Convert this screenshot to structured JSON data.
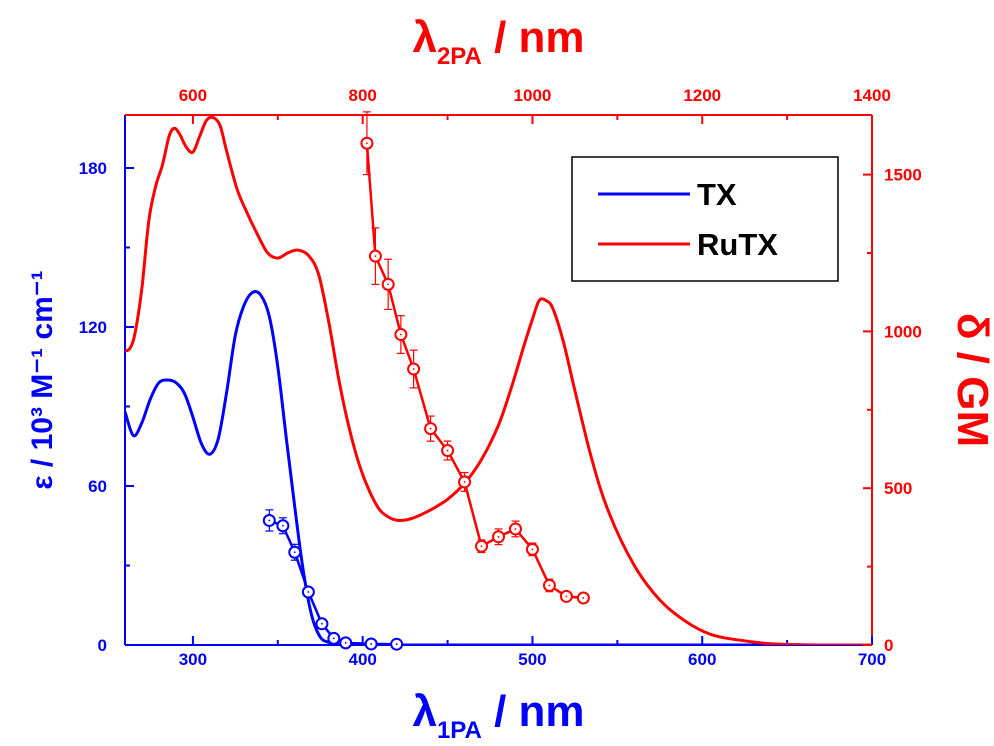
{
  "chart_data": {
    "type": "line",
    "axes": {
      "x_bottom": {
        "label_main": "λ",
        "label_sub": "1PA",
        "label_suffix": " / nm",
        "range": [
          260,
          700
        ],
        "ticks": [
          300,
          400,
          500,
          600,
          700
        ],
        "tick_labels": [
          "300",
          "400",
          "500",
          "600",
          "700"
        ],
        "color": "#0000ff"
      },
      "x_top": {
        "label_main": "λ",
        "label_sub": "2PA",
        "label_suffix": " / nm",
        "range": [
          520,
          1400
        ],
        "ticks": [
          600,
          800,
          1000,
          1200,
          1400
        ],
        "tick_labels": [
          "600",
          "800",
          "1000",
          "1200",
          "1400"
        ],
        "color": "#ff0000"
      },
      "y_left": {
        "label": "ε / 10³ M⁻¹ cm⁻¹",
        "range": [
          0,
          200
        ],
        "ticks": [
          0,
          60,
          120,
          180
        ],
        "tick_labels": [
          "0",
          "60",
          "120",
          "180"
        ],
        "color": "#0000ff"
      },
      "y_right": {
        "label": "δ / GM",
        "range": [
          0,
          1690
        ],
        "ticks": [
          0,
          500,
          1000,
          1500
        ],
        "tick_labels": [
          "0",
          "500",
          "1000",
          "1500"
        ],
        "color": "#ff0000"
      }
    },
    "legend": {
      "position": "top-right",
      "entries": [
        {
          "name": "TX",
          "color": "#0000ff"
        },
        {
          "name": "RuTX",
          "color": "#ff0000"
        }
      ]
    },
    "series": [
      {
        "name": "TX",
        "kind": "1PA absorption",
        "axis": "y_left",
        "color": "#0000ff",
        "x": [
          260,
          265,
          270,
          275,
          280,
          285,
          290,
          295,
          300,
          305,
          310,
          315,
          320,
          325,
          330,
          335,
          340,
          345,
          350,
          355,
          360,
          365,
          370,
          375,
          380,
          385,
          390,
          400,
          420,
          450,
          500,
          600,
          700
        ],
        "y": [
          88,
          79,
          84,
          93,
          99,
          100,
          99,
          95,
          86,
          76,
          72,
          78,
          96,
          117,
          128,
          133,
          132,
          124,
          105,
          78,
          52,
          28,
          11,
          3,
          1,
          0.3,
          0.1,
          0,
          0,
          0,
          0,
          0,
          0
        ]
      },
      {
        "name": "RuTX",
        "kind": "1PA absorption",
        "axis": "y_left",
        "color": "#ff0000",
        "x": [
          260,
          263,
          266,
          270,
          274,
          278,
          282,
          286,
          289,
          292,
          296,
          300,
          304,
          308,
          312,
          316,
          320,
          326,
          332,
          338,
          344,
          350,
          356,
          362,
          368,
          374,
          380,
          386,
          392,
          398,
          404,
          410,
          416,
          422,
          430,
          440,
          450,
          460,
          470,
          480,
          488,
          495,
          500,
          504,
          508,
          512,
          518,
          525,
          535,
          545,
          560,
          575,
          590,
          605,
          620,
          640,
          660,
          680,
          700
        ],
        "y": [
          111,
          112,
          118,
          135,
          160,
          173,
          181,
          192,
          195,
          193,
          188,
          186,
          192,
          198,
          199,
          196,
          186,
          172,
          163,
          155,
          148,
          146,
          148,
          149,
          147,
          140,
          122,
          100,
          82,
          68,
          58,
          51,
          48,
          47,
          48,
          51,
          55,
          61,
          70,
          83,
          98,
          113,
          123,
          130,
          130,
          127,
          115,
          96,
          70,
          50,
          30,
          17,
          9,
          4,
          2,
          0.5,
          0.1,
          0,
          0
        ]
      },
      {
        "name": "TX",
        "kind": "2PA cross-section (symbols)",
        "axis": "y_left",
        "color": "#0000ff",
        "x": [
          345,
          353,
          360,
          368,
          376,
          383,
          390,
          405,
          420
        ],
        "y": [
          47,
          45,
          35,
          20,
          8,
          2.5,
          0.8,
          0.4,
          0.3
        ],
        "err": [
          4,
          3,
          3,
          0,
          0,
          0,
          0,
          0,
          0
        ]
      },
      {
        "name": "RuTX",
        "kind": "2PA cross-section (symbols)",
        "axis": "y_right",
        "color": "#ff0000",
        "x_2pa": [
          805,
          815,
          830,
          845,
          860,
          880,
          900,
          920,
          940,
          960,
          980,
          1000,
          1020,
          1040,
          1060
        ],
        "y": [
          1600,
          1240,
          1150,
          990,
          880,
          690,
          620,
          520,
          315,
          345,
          370,
          305,
          190,
          155,
          150
        ],
        "err": [
          100,
          90,
          80,
          60,
          60,
          40,
          30,
          30,
          20,
          25,
          25,
          20,
          20,
          15,
          15
        ]
      }
    ]
  }
}
